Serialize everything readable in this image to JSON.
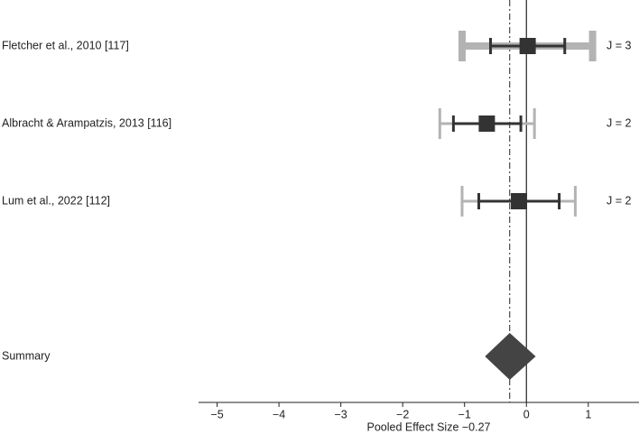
{
  "chart_data": {
    "type": "forest",
    "xlabel": "Pooled Effect Size −0.27",
    "xlim": [
      -5.3,
      1.82
    ],
    "xticks": [
      {
        "value": -5,
        "label": "−5"
      },
      {
        "value": -4,
        "label": "−4"
      },
      {
        "value": -3,
        "label": "−3"
      },
      {
        "value": -2,
        "label": "−2"
      },
      {
        "value": -1,
        "label": "−1"
      },
      0,
      1
    ],
    "reference_line": 0,
    "studies": [
      {
        "name": "Fletcher et al., 2010 [117]",
        "estimate": 0.02,
        "inner": [
          -0.58,
          0.62
        ],
        "outer": [
          -1.04,
          1.07
        ],
        "j_label": "J = 3"
      },
      {
        "name": "Albracht & Arampatzis, 2013 [116]",
        "estimate": -0.64,
        "inner": [
          -1.18,
          -0.09
        ],
        "outer": [
          -1.4,
          0.13
        ],
        "j_label": "J = 2"
      },
      {
        "name": "Lum et al., 2022 [112]",
        "estimate": -0.12,
        "inner": [
          -0.77,
          0.53
        ],
        "outer": [
          -1.04,
          0.79
        ],
        "j_label": "J = 2"
      }
    ],
    "summary": {
      "name": "Summary",
      "estimate": -0.27,
      "lower": -0.67,
      "upper": 0.15
    },
    "colors": {
      "point": "#333333",
      "inner": "#333333",
      "outer": "#b3b3b3",
      "diamond": "#444444"
    }
  }
}
